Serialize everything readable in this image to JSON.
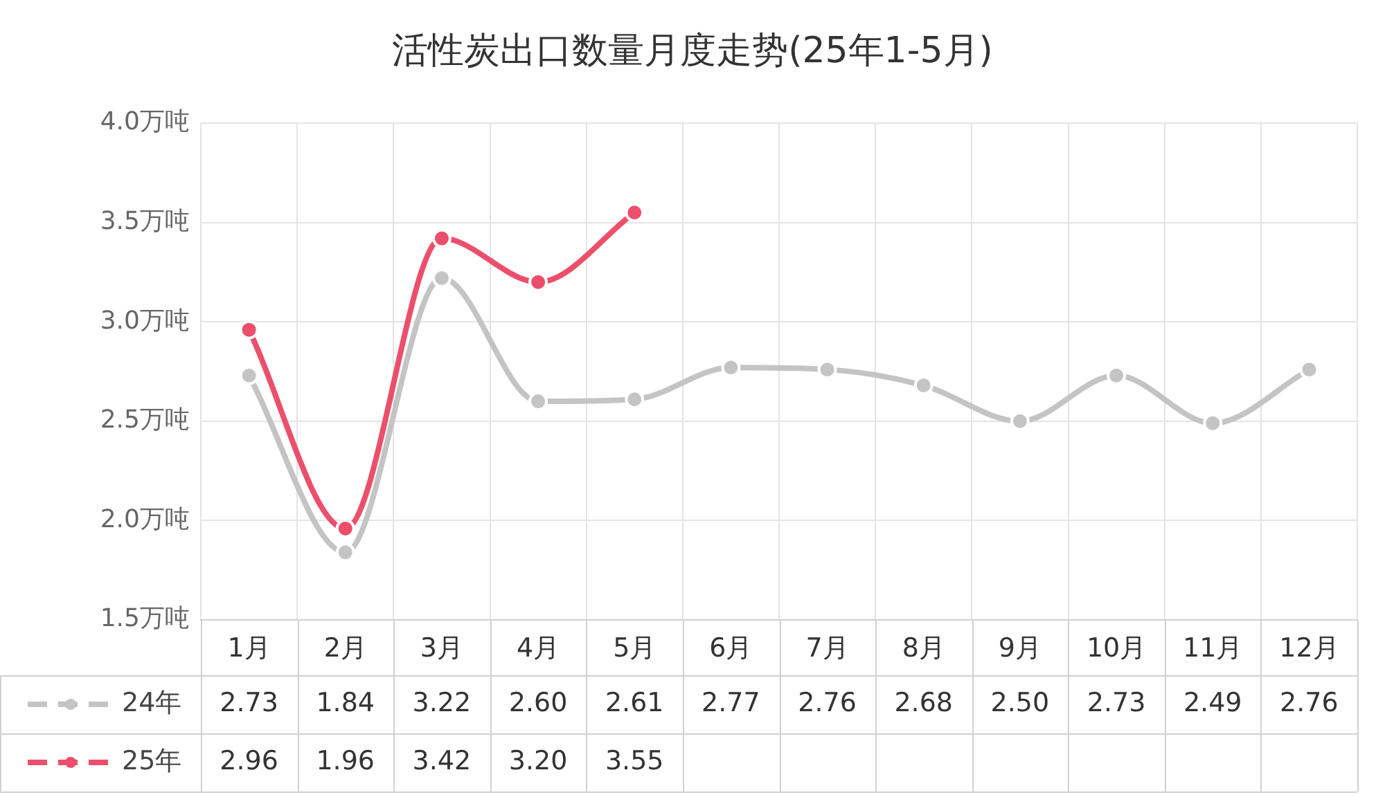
{
  "chart_data": {
    "type": "line",
    "title": "活性炭出口数量月度走势(25年1-5月)",
    "categories": [
      "1月",
      "2月",
      "3月",
      "4月",
      "5月",
      "6月",
      "7月",
      "8月",
      "9月",
      "10月",
      "11月",
      "12月"
    ],
    "series": [
      {
        "name": "24年",
        "color": "#c4c4c4",
        "values": [
          2.73,
          1.84,
          3.22,
          2.6,
          2.61,
          2.77,
          2.76,
          2.68,
          2.5,
          2.73,
          2.49,
          2.76
        ],
        "value_labels": [
          "2.73",
          "1.84",
          "3.22",
          "2.60",
          "2.61",
          "2.77",
          "2.76",
          "2.68",
          "2.50",
          "2.73",
          "2.49",
          "2.76"
        ]
      },
      {
        "name": "25年",
        "color": "#ec4f6b",
        "values": [
          2.96,
          1.96,
          3.42,
          3.2,
          3.55,
          null,
          null,
          null,
          null,
          null,
          null,
          null
        ],
        "value_labels": [
          "2.96",
          "1.96",
          "3.42",
          "3.20",
          "3.55",
          null,
          null,
          null,
          null,
          null,
          null,
          null
        ]
      }
    ],
    "ylim": [
      1.5,
      4.0
    ],
    "yticks": [
      {
        "value": 1.5,
        "label": "1.5万吨"
      },
      {
        "value": 2.0,
        "label": "2.0万吨"
      },
      {
        "value": 2.5,
        "label": "2.5万吨"
      },
      {
        "value": 3.0,
        "label": "3.0万吨"
      },
      {
        "value": 3.5,
        "label": "3.5万吨"
      },
      {
        "value": 4.0,
        "label": "4.0万吨"
      }
    ],
    "grid": true,
    "legend": "bottom",
    "marker": "circle",
    "line_style": "solid"
  }
}
